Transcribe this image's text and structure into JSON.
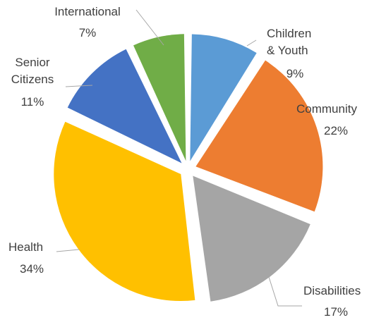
{
  "chart_data": {
    "type": "pie",
    "title": "",
    "exploded": true,
    "slices": [
      {
        "name_lines": [
          "Children",
          "& Youth"
        ],
        "label": "Children & Youth",
        "value": 9,
        "percent_text": "9%",
        "color": "#5B9BD5"
      },
      {
        "name_lines": [
          "Community"
        ],
        "label": "Community",
        "value": 22,
        "percent_text": "22%",
        "color": "#ED7D31"
      },
      {
        "name_lines": [
          "Disabilities"
        ],
        "label": "Disabilities",
        "value": 17,
        "percent_text": "17%",
        "color": "#A5A5A5"
      },
      {
        "name_lines": [
          "Health"
        ],
        "label": "Health",
        "value": 34,
        "percent_text": "34%",
        "color": "#FFC000"
      },
      {
        "name_lines": [
          "Senior",
          "Citizens"
        ],
        "label": "Senior Citizens",
        "value": 11,
        "percent_text": "11%",
        "color": "#4472C4"
      },
      {
        "name_lines": [
          "International"
        ],
        "label": "International",
        "value": 7,
        "percent_text": "7%",
        "color": "#70AD47"
      }
    ],
    "leader_line_color": "#A6A6A6"
  }
}
